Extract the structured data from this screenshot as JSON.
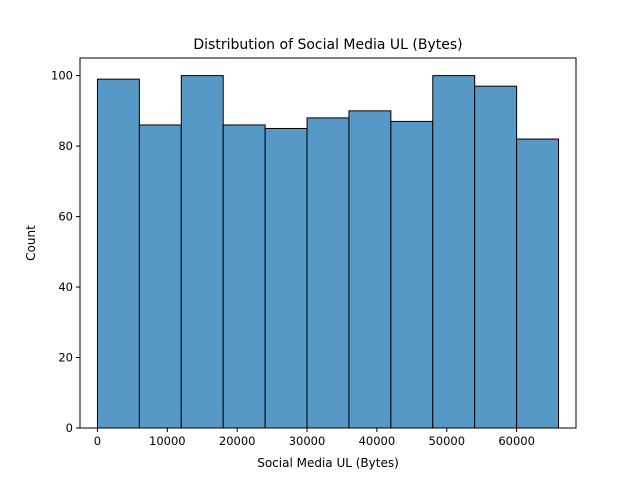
{
  "chart_data": {
    "type": "bar",
    "title": "Distribution of Social Media UL (Bytes)",
    "xlabel": "Social Media UL (Bytes)",
    "ylabel": "Count",
    "bins": [
      {
        "start": 0,
        "end": 6000,
        "count": 99
      },
      {
        "start": 6000,
        "end": 12000,
        "count": 86
      },
      {
        "start": 12000,
        "end": 18000,
        "count": 100
      },
      {
        "start": 18000,
        "end": 24000,
        "count": 86
      },
      {
        "start": 24000,
        "end": 30000,
        "count": 85
      },
      {
        "start": 30000,
        "end": 36000,
        "count": 88
      },
      {
        "start": 36000,
        "end": 42000,
        "count": 90
      },
      {
        "start": 42000,
        "end": 48000,
        "count": 87
      },
      {
        "start": 48000,
        "end": 54000,
        "count": 100
      },
      {
        "start": 54000,
        "end": 60000,
        "count": 97
      },
      {
        "start": 60000,
        "end": 66000,
        "count": 82
      }
    ],
    "xlim": [
      -2500,
      68500
    ],
    "ylim": [
      0,
      105
    ],
    "xticks": [
      0,
      10000,
      20000,
      30000,
      40000,
      50000,
      60000
    ],
    "yticks": [
      0,
      20,
      40,
      60,
      80,
      100
    ],
    "grid": false,
    "colors": {
      "bar_fill": "#5799c6",
      "bar_edge": "#000000"
    }
  }
}
